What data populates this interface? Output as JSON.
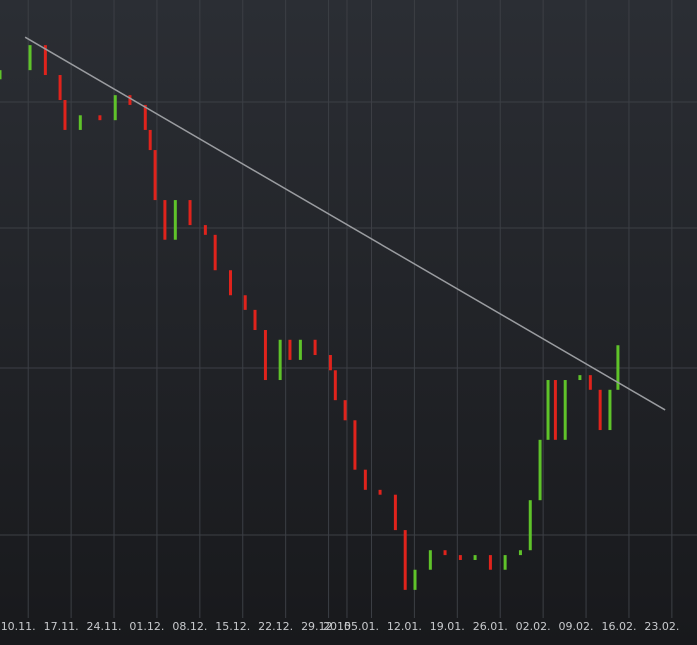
{
  "chart_data": {
    "type": "candlestick",
    "x": [
      -4.6,
      0.3,
      2.8,
      5.2,
      6.0,
      8.5,
      11.7,
      14.2,
      16.6,
      19.1,
      19.9,
      20.7,
      22.3,
      24.0,
      26.4,
      28.9,
      30.5,
      33.0,
      35.4,
      37.0,
      38.7,
      41.1,
      42.7,
      44.4,
      46.8,
      49.3,
      50.1,
      51.7,
      53.3,
      55.0,
      57.4,
      59.9,
      61.5,
      63.1,
      65.6,
      68.0,
      70.5,
      72.9,
      75.4,
      77.8,
      80.3,
      81.9,
      83.5,
      84.8,
      86.0,
      87.6,
      90.0,
      91.7,
      93.3,
      94.9,
      96.2
    ],
    "open": [
      87.0,
      88.5,
      92.6,
      87.7,
      83.6,
      78.7,
      81.1,
      80.3,
      84.4,
      82.8,
      78.7,
      75.4,
      67.2,
      60.7,
      67.2,
      63.1,
      61.5,
      55.7,
      51.6,
      49.2,
      45.9,
      37.7,
      44.3,
      41.0,
      44.3,
      41.8,
      39.3,
      34.4,
      31.1,
      23.0,
      19.7,
      18.9,
      13.1,
      3.3,
      6.6,
      9.8,
      9.0,
      8.2,
      9.0,
      6.6,
      9.0,
      9.8,
      18.0,
      27.9,
      37.7,
      27.9,
      37.7,
      38.5,
      36.1,
      29.5,
      36.1
    ],
    "close": [
      88.5,
      92.6,
      87.7,
      83.6,
      78.7,
      81.1,
      80.3,
      84.4,
      82.8,
      78.7,
      75.4,
      67.2,
      60.7,
      67.2,
      63.1,
      61.5,
      55.7,
      51.6,
      49.2,
      45.9,
      37.7,
      44.3,
      41.0,
      44.3,
      41.8,
      39.3,
      34.4,
      31.1,
      23.0,
      19.7,
      18.9,
      13.1,
      3.3,
      6.6,
      9.8,
      9.0,
      8.2,
      9.0,
      6.6,
      9.0,
      9.8,
      18.0,
      27.9,
      37.7,
      27.9,
      37.7,
      38.5,
      36.1,
      29.5,
      36.1,
      43.4
    ],
    "up_color": "#5fc32a",
    "down_color": "#e0231c",
    "trendline": {
      "x": [
        -0.5,
        103.9
      ],
      "y": [
        93.9,
        32.8
      ],
      "color": "#9a9ca0"
    },
    "xlim": [
      -4.6,
      109.1
    ],
    "ylim": [
      0,
      100
    ],
    "xticks": [
      {
        "value": 0,
        "label": "10.11."
      },
      {
        "value": 7,
        "label": "17.11."
      },
      {
        "value": 14,
        "label": "24.11."
      },
      {
        "value": 21,
        "label": "01.12."
      },
      {
        "value": 28,
        "label": "08.12."
      },
      {
        "value": 35,
        "label": "15.12."
      },
      {
        "value": 42,
        "label": "22.12."
      },
      {
        "value": 49,
        "label": "29.12."
      },
      {
        "value": 52,
        "label": "2015"
      },
      {
        "value": 56,
        "label": "05.01."
      },
      {
        "value": 63,
        "label": "12.01."
      },
      {
        "value": 70,
        "label": "19.01."
      },
      {
        "value": 77,
        "label": "26.01."
      },
      {
        "value": 84,
        "label": "02.02."
      },
      {
        "value": 91,
        "label": "09.02."
      },
      {
        "value": 98,
        "label": "16.02."
      },
      {
        "value": 105,
        "label": "23.02."
      }
    ],
    "grid": true
  }
}
